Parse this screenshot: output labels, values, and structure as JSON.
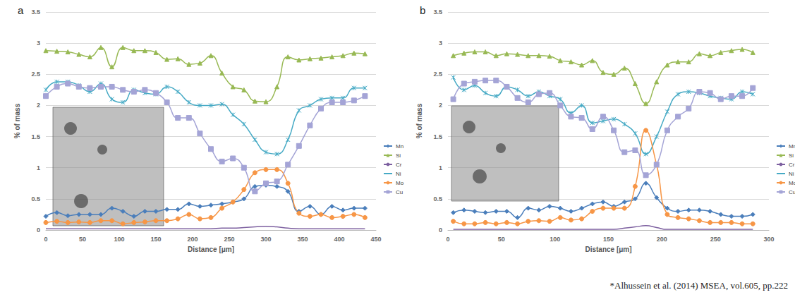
{
  "chart_data": [
    {
      "type": "line",
      "title": "a",
      "x_label": "Distance [μm]",
      "y_label": "% of mass",
      "xlim": [
        0,
        450
      ],
      "xticks": [
        0,
        50,
        100,
        150,
        200,
        250,
        300,
        350,
        400,
        450
      ],
      "ylim": [
        0,
        3.5
      ],
      "yticks": [
        0,
        0.5,
        1,
        1.5,
        2,
        2.5,
        3,
        3.5
      ],
      "grid": true,
      "legend": "right",
      "x": [
        0,
        15,
        30,
        45,
        60,
        75,
        90,
        105,
        120,
        135,
        150,
        165,
        180,
        195,
        210,
        225,
        240,
        255,
        270,
        285,
        300,
        315,
        330,
        345,
        360,
        375,
        390,
        405,
        420,
        435
      ],
      "series": [
        {
          "name": "Mn",
          "color": "#4a7ebb",
          "marker": "diamond",
          "values": [
            0.22,
            0.28,
            0.23,
            0.25,
            0.25,
            0.25,
            0.35,
            0.3,
            0.22,
            0.3,
            0.3,
            0.33,
            0.33,
            0.42,
            0.38,
            0.4,
            0.42,
            0.45,
            0.5,
            0.7,
            0.72,
            0.7,
            0.62,
            0.3,
            0.38,
            0.25,
            0.38,
            0.32,
            0.35,
            0.35
          ]
        },
        {
          "name": "Si",
          "color": "#98b954",
          "marker": "triangle",
          "values": [
            2.88,
            2.87,
            2.86,
            2.82,
            2.78,
            2.93,
            2.62,
            2.93,
            2.88,
            2.88,
            2.85,
            2.74,
            2.75,
            2.66,
            2.68,
            2.8,
            2.52,
            2.3,
            2.25,
            2.07,
            2.06,
            2.3,
            2.78,
            2.73,
            2.75,
            2.76,
            2.78,
            2.8,
            2.84,
            2.83
          ]
        },
        {
          "name": "Cr",
          "color": "#7d60a0",
          "marker": "none",
          "values": [
            0.02,
            0.02,
            0.02,
            0.02,
            0.02,
            0.02,
            0.02,
            0.02,
            0.02,
            0.02,
            0.02,
            0.02,
            0.02,
            0.02,
            0.02,
            0.02,
            0.03,
            0.03,
            0.04,
            0.05,
            0.06,
            0.05,
            0.03,
            0.02,
            0.02,
            0.02,
            0.02,
            0.02,
            0.02,
            0.02
          ]
        },
        {
          "name": "Ni",
          "color": "#46aac5",
          "marker": "x",
          "values": [
            2.25,
            2.38,
            2.38,
            2.32,
            2.22,
            2.35,
            2.1,
            2.05,
            2.25,
            2.2,
            2.18,
            2.3,
            2.22,
            2.05,
            2.0,
            2.0,
            2.02,
            1.85,
            1.7,
            1.45,
            1.25,
            1.22,
            1.45,
            1.92,
            2.0,
            2.1,
            2.12,
            2.12,
            2.28,
            2.28
          ]
        },
        {
          "name": "Mo",
          "color": "#f79646",
          "marker": "circle",
          "values": [
            0.12,
            0.14,
            0.12,
            0.13,
            0.12,
            0.15,
            0.15,
            0.1,
            0.12,
            0.13,
            0.15,
            0.15,
            0.18,
            0.25,
            0.18,
            0.2,
            0.35,
            0.45,
            0.65,
            0.92,
            0.97,
            0.97,
            0.75,
            0.27,
            0.22,
            0.25,
            0.2,
            0.22,
            0.25,
            0.2
          ]
        },
        {
          "name": "Cu",
          "color": "#a4a4d6",
          "marker": "dash",
          "values": [
            2.15,
            2.3,
            2.35,
            2.3,
            2.28,
            2.3,
            2.3,
            2.25,
            2.22,
            2.25,
            2.2,
            2.05,
            1.8,
            1.8,
            1.55,
            1.3,
            1.1,
            1.15,
            1.0,
            0.62,
            0.75,
            0.78,
            1.05,
            1.35,
            1.68,
            1.95,
            2.05,
            2.05,
            2.08,
            2.15
          ]
        }
      ]
    },
    {
      "type": "line",
      "title": "b",
      "x_label": "Distance [μm]",
      "y_label": "% of mass",
      "xlim": [
        0,
        300
      ],
      "xticks": [
        0,
        50,
        100,
        150,
        200,
        250,
        300
      ],
      "ylim": [
        0,
        3.5
      ],
      "yticks": [
        0,
        0.5,
        1,
        1.5,
        2,
        2.5,
        3,
        3.5
      ],
      "grid": true,
      "legend": "right",
      "annotations": [
        "*Alhussein et al. (2014) MSEA, vol.605, pp.222"
      ],
      "x": [
        5,
        15,
        25,
        35,
        45,
        55,
        65,
        75,
        85,
        95,
        105,
        115,
        125,
        135,
        145,
        155,
        165,
        175,
        185,
        195,
        205,
        215,
        225,
        235,
        245,
        255,
        265,
        275,
        285
      ],
      "series": [
        {
          "name": "Mn",
          "color": "#4a7ebb",
          "marker": "diamond",
          "values": [
            0.28,
            0.32,
            0.3,
            0.28,
            0.3,
            0.3,
            0.2,
            0.35,
            0.32,
            0.38,
            0.35,
            0.3,
            0.35,
            0.42,
            0.45,
            0.38,
            0.45,
            0.5,
            0.75,
            0.52,
            0.35,
            0.3,
            0.32,
            0.32,
            0.3,
            0.25,
            0.22,
            0.22,
            0.25
          ]
        },
        {
          "name": "Si",
          "color": "#98b954",
          "marker": "triangle",
          "values": [
            2.8,
            2.84,
            2.86,
            2.86,
            2.8,
            2.83,
            2.82,
            2.8,
            2.8,
            2.79,
            2.72,
            2.7,
            2.65,
            2.72,
            2.53,
            2.5,
            2.6,
            2.35,
            2.03,
            2.38,
            2.65,
            2.7,
            2.7,
            2.83,
            2.8,
            2.85,
            2.88,
            2.9,
            2.85
          ]
        },
        {
          "name": "Cr",
          "color": "#7d60a0",
          "marker": "none",
          "values": [
            0.01,
            0.01,
            0.01,
            0.01,
            0.01,
            0.01,
            0.01,
            0.01,
            0.01,
            0.01,
            0.01,
            0.01,
            0.01,
            0.01,
            0.01,
            0.01,
            0.03,
            0.05,
            0.07,
            0.04,
            0.01,
            0.01,
            0.01,
            0.01,
            0.01,
            0.01,
            0.01,
            0.01,
            0.01
          ]
        },
        {
          "name": "Ni",
          "color": "#46aac5",
          "marker": "x",
          "values": [
            2.45,
            2.25,
            2.32,
            2.2,
            2.15,
            2.3,
            2.25,
            2.15,
            2.22,
            2.15,
            2.1,
            1.88,
            2.0,
            1.72,
            1.75,
            1.78,
            1.7,
            1.55,
            1.22,
            1.5,
            1.9,
            2.18,
            2.22,
            2.2,
            2.15,
            2.12,
            2.1,
            2.22,
            2.18
          ]
        },
        {
          "name": "Mo",
          "color": "#f79646",
          "marker": "circle",
          "values": [
            0.14,
            0.1,
            0.1,
            0.12,
            0.1,
            0.12,
            0.1,
            0.14,
            0.15,
            0.14,
            0.2,
            0.16,
            0.18,
            0.3,
            0.35,
            0.35,
            0.35,
            0.7,
            1.6,
            1.05,
            0.25,
            0.2,
            0.18,
            0.15,
            0.12,
            0.12,
            0.12,
            0.1,
            0.1
          ]
        },
        {
          "name": "Cu",
          "color": "#a4a4d6",
          "marker": "dash",
          "values": [
            2.1,
            2.35,
            2.38,
            2.4,
            2.4,
            2.3,
            2.12,
            2.05,
            2.18,
            2.2,
            2.0,
            1.82,
            1.8,
            1.62,
            1.82,
            1.6,
            1.25,
            1.28,
            0.88,
            1.05,
            1.6,
            1.82,
            1.95,
            2.22,
            2.2,
            2.1,
            2.15,
            2.15,
            2.28
          ]
        }
      ]
    }
  ]
}
